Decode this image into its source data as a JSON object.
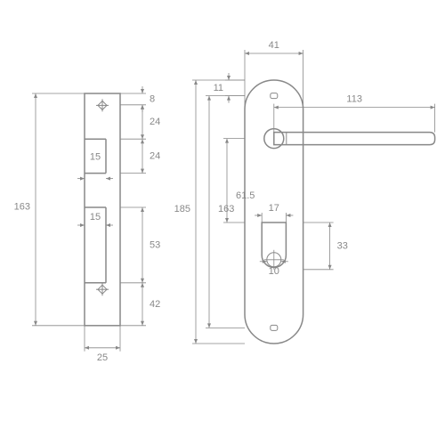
{
  "colors": {
    "stroke": "#888888",
    "fill": "#ffffff",
    "background": "#ffffff",
    "dim_text": "#888888"
  },
  "strike_plate": {
    "width_mm": 25,
    "height_mm": 163,
    "top_margin_mm": 8,
    "latch_gap_mm": 24,
    "latch_height_mm": 24,
    "latch_width_mm": 15,
    "bolt_height_mm": 53,
    "bolt_width_mm": 15,
    "bottom_margin_mm": 42
  },
  "handle_plate": {
    "width_mm": 41,
    "height_mm": 185,
    "height_inner_mm": 163,
    "top_screw_offset_mm": 11,
    "handle_length_mm": 113,
    "handle_to_cylinder_mm": 61.5,
    "cylinder_width_mm": 17,
    "cylinder_circle_dia_mm": 10,
    "cylinder_height_mm": 33
  },
  "labels": {
    "sp_height": "163",
    "sp_width": "25",
    "sp_top": "8",
    "sp_gap1": "24",
    "sp_gap2": "24",
    "sp_cut1": "15",
    "sp_cut2": "15",
    "sp_bolt": "53",
    "sp_bottom": "42",
    "hp_width": "41",
    "hp_top": "11",
    "hp_h1": "185",
    "hp_h2": "163",
    "hp_cs": "61.5",
    "hp_handle": "113",
    "hp_cyl_w": "17",
    "hp_cyl_d": "10",
    "hp_cyl_h": "33"
  }
}
